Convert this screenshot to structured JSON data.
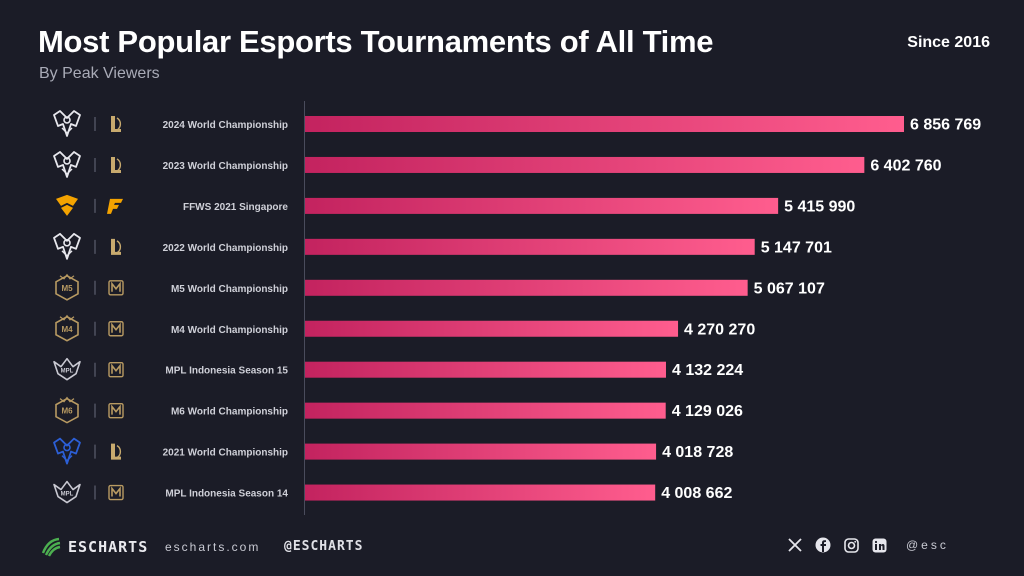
{
  "header": {
    "title": "Most Popular Esports Tournaments of All Time",
    "subtitle": "By Peak Viewers",
    "since": "Since 2016"
  },
  "footer": {
    "brand": "ESCHARTS",
    "url": "escharts.com",
    "handle": "@ESCHARTS",
    "extra": "@esc",
    "social_icons": [
      "x-icon",
      "facebook-icon",
      "instagram-icon",
      "linkedin-icon"
    ]
  },
  "colors": {
    "background": "#1b1c27",
    "bar_start": "#c3235f",
    "bar_end": "#ff5d8e",
    "lol_gold": "#c8aa6e",
    "ff_orange": "#f4a300",
    "mlbb_gold": "#b89a62"
  },
  "chart_data": {
    "type": "bar",
    "orientation": "horizontal",
    "title": "Most Popular Esports Tournaments of All Time",
    "subtitle": "By Peak Viewers",
    "categories": [
      "2024 World Championship",
      "2023 World Championship",
      "FFWS 2021 Singapore",
      "2022 World Championship",
      "M5 World Championship",
      "M4 World Championship",
      "MPL Indonesia Season 15",
      "M6 World Championship",
      "2021 World Championship",
      "MPL Indonesia Season 14"
    ],
    "values": [
      6856769,
      6402760,
      5415990,
      5147701,
      5067107,
      4270270,
      4132224,
      4129026,
      4018728,
      4008662
    ],
    "value_labels": [
      "6 856 769",
      "6 402 760",
      "5 415 990",
      "5 147 701",
      "5 067 107",
      "4 270 270",
      "4 132 224",
      "4 129 026",
      "4 018 728",
      "4 008 662"
    ],
    "games": [
      "League of Legends",
      "League of Legends",
      "Free Fire",
      "League of Legends",
      "Mobile Legends",
      "Mobile Legends",
      "Mobile Legends",
      "Mobile Legends",
      "League of Legends",
      "Mobile Legends"
    ],
    "event_icons": [
      "worlds-logo-icon",
      "worlds-logo-icon",
      "ffws-logo-icon",
      "worlds-logo-icon",
      "m5-logo-icon",
      "m4-logo-icon",
      "mpl-logo-icon",
      "m6-logo-icon",
      "worlds-2021-logo-icon",
      "mpl-logo-icon"
    ],
    "game_icons": [
      "lol-icon",
      "lol-icon",
      "free-fire-icon",
      "lol-icon",
      "mlbb-icon",
      "mlbb-icon",
      "mlbb-icon",
      "mlbb-icon",
      "lol-icon",
      "mlbb-icon"
    ],
    "xlim": [
      0,
      6856769
    ],
    "grid": false,
    "legend": "none"
  }
}
